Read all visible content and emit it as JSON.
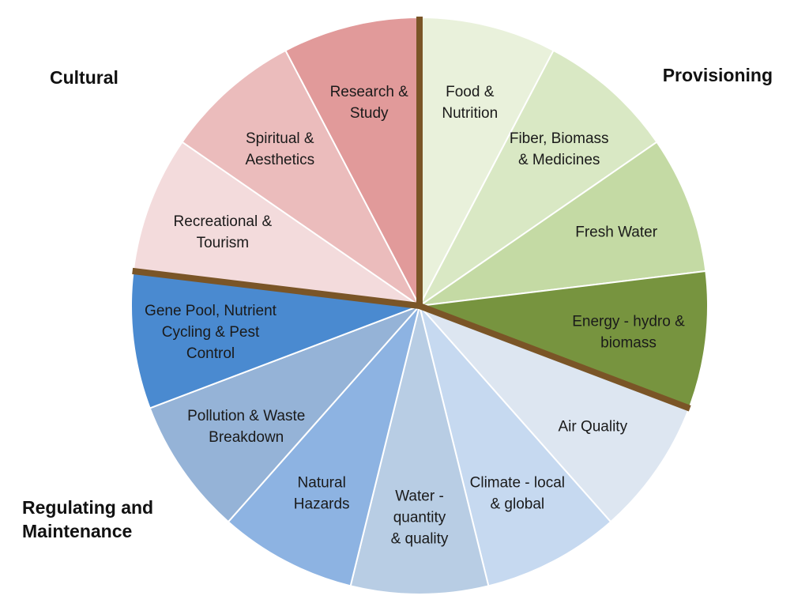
{
  "chart_data": {
    "type": "pie",
    "title": "",
    "slices": [
      {
        "label": [
          "Food &",
          "Nutrition"
        ],
        "value": 1,
        "color": "#e9f1db",
        "group": "Provisioning"
      },
      {
        "label": [
          "Fiber, Biomass",
          "& Medicines"
        ],
        "value": 1,
        "color": "#d9e8c4",
        "group": "Provisioning"
      },
      {
        "label": [
          "Fresh Water"
        ],
        "value": 1,
        "color": "#c4daa4",
        "group": "Provisioning"
      },
      {
        "label": [
          "Energy - hydro &",
          "biomass"
        ],
        "value": 1,
        "color": "#77943f",
        "group": "Provisioning"
      },
      {
        "label": [
          "Air Quality"
        ],
        "value": 1,
        "color": "#dde6f1",
        "group": "Regulating and Maintenance"
      },
      {
        "label": [
          "Climate - local",
          "& global"
        ],
        "value": 1,
        "color": "#c6d9f0",
        "group": "Regulating and Maintenance"
      },
      {
        "label": [
          "Water -",
          "quantity",
          "& quality"
        ],
        "value": 1,
        "color": "#b8cde4",
        "group": "Regulating and Maintenance"
      },
      {
        "label": [
          "Natural",
          "Hazards"
        ],
        "value": 1,
        "color": "#8db3e2",
        "group": "Regulating and Maintenance"
      },
      {
        "label": [
          "Pollution & Waste",
          "Breakdown"
        ],
        "value": 1,
        "color": "#95b3d7",
        "group": "Regulating and Maintenance"
      },
      {
        "label": [
          "Gene Pool, Nutrient",
          "Cycling & Pest",
          "Control"
        ],
        "value": 1,
        "color": "#4a8ad0",
        "group": "Regulating and Maintenance"
      },
      {
        "label": [
          "Recreational &",
          "Tourism"
        ],
        "value": 1,
        "color": "#f3dbdc",
        "group": "Cultural"
      },
      {
        "label": [
          "Spiritual &",
          "Aesthetics"
        ],
        "value": 1,
        "color": "#ebbcbc",
        "group": "Cultural"
      },
      {
        "label": [
          "Research &",
          "Study"
        ],
        "value": 1,
        "color": "#e19a9a",
        "group": "Cultural"
      }
    ],
    "groups": [
      {
        "name": "Provisioning",
        "lines": [
          "Provisioning"
        ]
      },
      {
        "name": "Regulating and Maintenance",
        "lines": [
          "Regulating and",
          "Maintenance"
        ]
      },
      {
        "name": "Cultural",
        "lines": [
          "Cultural"
        ]
      }
    ],
    "divider_color": "#7a5527"
  }
}
